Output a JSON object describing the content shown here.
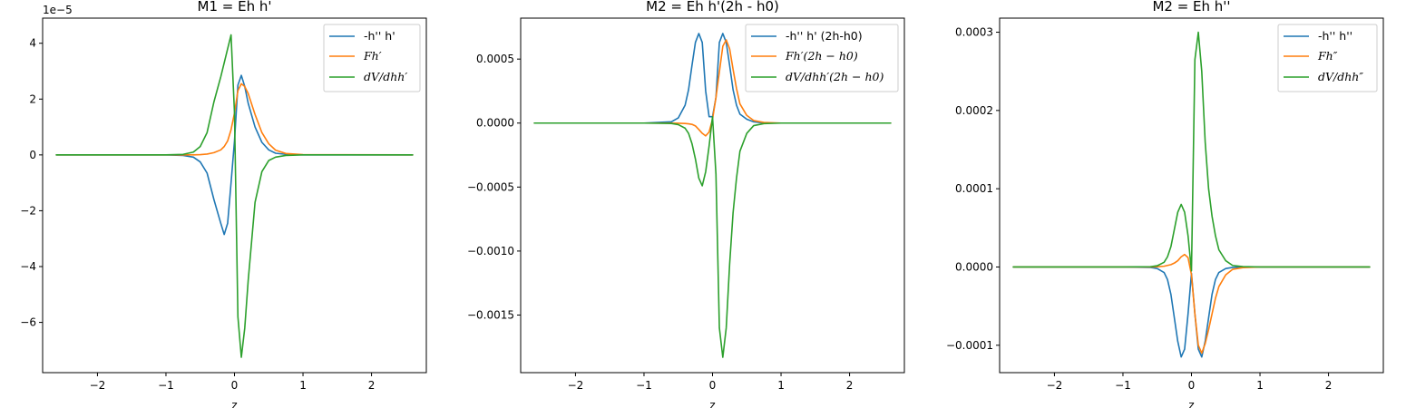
{
  "chart_data": [
    {
      "type": "line",
      "title": "M1 = Eh h'",
      "xlabel": "z",
      "ylabel": "",
      "offset_text": "1e−5",
      "xlim": [
        -2.8,
        2.8
      ],
      "ylim": [
        -7.8,
        4.9
      ],
      "x_ticks": [
        -2,
        -1,
        0,
        1,
        2
      ],
      "x_tick_labels": [
        "−2",
        "−1",
        "0",
        "1",
        "2"
      ],
      "y_ticks": [
        -6,
        -4,
        -2,
        0,
        2,
        4
      ],
      "y_tick_labels": [
        "−6",
        "−4",
        "−2",
        "0",
        "2",
        "4"
      ],
      "legend_position": "upper-right",
      "x": [
        -2.6,
        -1.0,
        -0.75,
        -0.6,
        -0.5,
        -0.4,
        -0.3,
        -0.2,
        -0.15,
        -0.1,
        -0.05,
        0.0,
        0.05,
        0.1,
        0.15,
        0.2,
        0.3,
        0.4,
        0.5,
        0.6,
        0.75,
        1.0,
        2.6
      ],
      "series": [
        {
          "name": "-h'' h'",
          "color": "#1f77b4",
          "math": false,
          "values": [
            0,
            0,
            -0.02,
            -0.08,
            -0.25,
            -0.65,
            -1.6,
            -2.45,
            -2.85,
            -2.45,
            -1.0,
            0.5,
            2.5,
            2.85,
            2.45,
            1.85,
            1.0,
            0.45,
            0.18,
            0.06,
            0.02,
            0,
            0
          ]
        },
        {
          "name": "Fh′",
          "color": "#ff7f0e",
          "math": true,
          "values": [
            0,
            0,
            0,
            0,
            0.01,
            0.03,
            0.08,
            0.18,
            0.3,
            0.5,
            0.9,
            1.5,
            2.3,
            2.55,
            2.45,
            2.2,
            1.45,
            0.8,
            0.4,
            0.17,
            0.05,
            0.01,
            0
          ]
        },
        {
          "name": "dV/dhh′",
          "color": "#2ca02c",
          "math": true,
          "values": [
            0,
            0,
            0.02,
            0.1,
            0.3,
            0.8,
            1.9,
            2.8,
            3.3,
            3.8,
            4.3,
            1.5,
            -5.8,
            -7.25,
            -6.2,
            -4.5,
            -1.7,
            -0.6,
            -0.2,
            -0.08,
            -0.02,
            0,
            0
          ]
        }
      ]
    },
    {
      "type": "line",
      "title": "M2 = Eh h'(2h - h0)",
      "xlabel": "z",
      "ylabel": "",
      "xlim": [
        -2.8,
        2.8
      ],
      "ylim": [
        -0.00195,
        0.00082
      ],
      "x_ticks": [
        -2,
        -1,
        0,
        1,
        2
      ],
      "x_tick_labels": [
        "−2",
        "−1",
        "0",
        "1",
        "2"
      ],
      "y_ticks": [
        0.0005,
        0.0,
        -0.0005,
        -0.001,
        -0.0015
      ],
      "y_tick_labels": [
        "0.0005",
        "0.0000",
        "−0.0005",
        "−0.0010",
        "−0.0015"
      ],
      "legend_position": "upper-right",
      "x": [
        -2.6,
        -1.0,
        -0.6,
        -0.5,
        -0.4,
        -0.35,
        -0.3,
        -0.25,
        -0.2,
        -0.15,
        -0.1,
        -0.05,
        0.0,
        0.05,
        0.1,
        0.15,
        0.2,
        0.25,
        0.3,
        0.35,
        0.4,
        0.5,
        0.6,
        0.75,
        1.0,
        2.6
      ],
      "series": [
        {
          "name": "-h'' h' (2h-h0)",
          "color": "#1f77b4",
          "math": false,
          "values": [
            0,
            0,
            1e-05,
            4e-05,
            0.00014,
            0.00026,
            0.00045,
            0.00063,
            0.0007,
            0.00063,
            0.00025,
            5e-05,
            5e-05,
            0.0002,
            0.00063,
            0.0007,
            0.00063,
            0.00045,
            0.00026,
            0.00014,
            7e-05,
            3e-05,
            1e-05,
            0,
            0,
            0
          ]
        },
        {
          "name": "Fh′(2h − h0)",
          "color": "#ff7f0e",
          "math": true,
          "values": [
            0,
            0,
            0,
            -1e-06,
            -3e-06,
            -6e-06,
            -1e-05,
            -2.2e-05,
            -5e-05,
            -8e-05,
            -0.0001,
            -7e-05,
            3e-05,
            0.0002,
            0.0004,
            0.0006,
            0.00065,
            0.00058,
            0.00042,
            0.00027,
            0.00015,
            6e-05,
            2e-05,
            5e-06,
            0,
            0
          ]
        },
        {
          "name": "dV/dhh′(2h − h0)",
          "color": "#2ca02c",
          "math": true,
          "values": [
            0,
            0,
            -3e-06,
            -1.2e-05,
            -4e-05,
            -8e-05,
            -0.00016,
            -0.00028,
            -0.00043,
            -0.00049,
            -0.00038,
            -0.00018,
            5e-05,
            -0.0004,
            -0.0016,
            -0.00183,
            -0.0016,
            -0.0011,
            -0.0007,
            -0.00043,
            -0.00022,
            -8e-05,
            -2e-05,
            -4e-06,
            0,
            0
          ]
        }
      ]
    },
    {
      "type": "line",
      "title": "M2 = Eh h''",
      "xlabel": "z",
      "ylabel": "",
      "xlim": [
        -2.8,
        2.8
      ],
      "ylim": [
        -0.000135,
        0.000318
      ],
      "x_ticks": [
        -2,
        -1,
        0,
        1,
        2
      ],
      "x_tick_labels": [
        "−2",
        "−1",
        "0",
        "1",
        "2"
      ],
      "y_ticks": [
        0.0003,
        0.0002,
        0.0001,
        0.0,
        -0.0001
      ],
      "y_tick_labels": [
        "0.0003",
        "0.0002",
        "0.0001",
        "0.0000",
        "−0.0001"
      ],
      "legend_position": "upper-right",
      "x": [
        -2.6,
        -1.0,
        -0.6,
        -0.5,
        -0.4,
        -0.35,
        -0.3,
        -0.25,
        -0.2,
        -0.15,
        -0.1,
        -0.05,
        0.0,
        0.05,
        0.1,
        0.15,
        0.2,
        0.25,
        0.3,
        0.35,
        0.4,
        0.5,
        0.6,
        0.75,
        1.0,
        2.6
      ],
      "series": [
        {
          "name": "-h'' h''",
          "color": "#1f77b4",
          "math": false,
          "values": [
            0,
            0,
            -5e-07,
            -2e-06,
            -7e-06,
            -1.6e-05,
            -3.5e-05,
            -6.5e-05,
            -9.5e-05,
            -0.000115,
            -0.000105,
            -6e-05,
            -8e-06,
            -6e-05,
            -0.000105,
            -0.000115,
            -9.5e-05,
            -6.5e-05,
            -3.5e-05,
            -1.6e-05,
            -7e-06,
            -2e-06,
            -5e-07,
            0,
            0,
            0
          ]
        },
        {
          "name": "Fh″",
          "color": "#ff7f0e",
          "math": true,
          "values": [
            0,
            0,
            0,
            3e-07,
            1e-06,
            2e-06,
            3e-06,
            5e-06,
            8e-06,
            1.3e-05,
            1.6e-05,
            1.2e-05,
            -1e-05,
            -6e-05,
            -0.0001,
            -0.00011,
            -9.8e-05,
            -8e-05,
            -6e-05,
            -4e-05,
            -2.5e-05,
            -1e-05,
            -3e-06,
            -8e-07,
            0,
            0
          ]
        },
        {
          "name": "dV/dhh″",
          "color": "#2ca02c",
          "math": true,
          "values": [
            0,
            0,
            4e-07,
            1.6e-06,
            6e-06,
            1.3e-05,
            2.6e-05,
            4.8e-05,
            7e-05,
            8e-05,
            7e-05,
            4e-05,
            -5e-06,
            0.000265,
            0.0003,
            0.00025,
            0.00016,
            0.0001,
            6.5e-05,
            4e-05,
            2.2e-05,
            8e-06,
            2e-06,
            5e-07,
            0,
            0
          ]
        }
      ]
    }
  ]
}
